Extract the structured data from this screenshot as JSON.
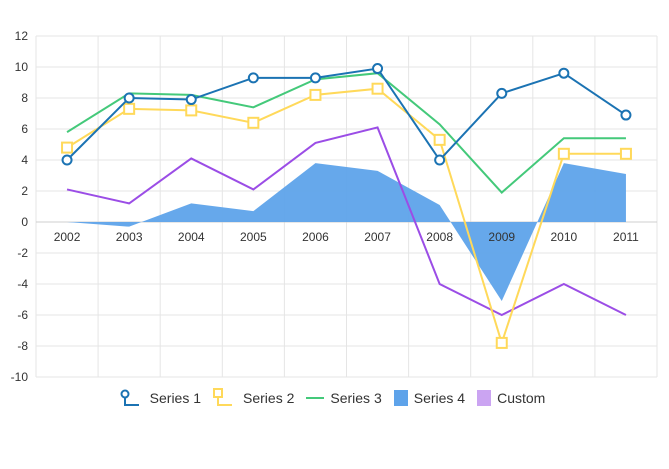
{
  "chart_data": {
    "type": "line",
    "categories": [
      "2002",
      "2003",
      "2004",
      "2005",
      "2006",
      "2007",
      "2008",
      "2009",
      "2010",
      "2011"
    ],
    "ylim": [
      -10,
      12
    ],
    "yticks": [
      "12",
      "10",
      "8",
      "6",
      "4",
      "2",
      "0",
      "-2",
      "-4",
      "-6",
      "-8",
      "-10"
    ],
    "grid": true,
    "legend_position": "bottom",
    "series": [
      {
        "name": "Series 1",
        "type": "line",
        "marker": "circle",
        "color": "#1b73b3",
        "values": [
          4,
          8,
          7.9,
          9.3,
          9.3,
          9.9,
          4,
          8.3,
          9.6,
          6.9
        ]
      },
      {
        "name": "Series 2",
        "type": "line",
        "marker": "square",
        "color": "#ffd95a",
        "values": [
          4.8,
          7.3,
          7.2,
          6.4,
          8.2,
          8.6,
          5.3,
          -7.8,
          4.4,
          4.4
        ]
      },
      {
        "name": "Series 3",
        "type": "line",
        "marker": "none",
        "color": "#44c97a",
        "values": [
          5.8,
          8.3,
          8.2,
          7.4,
          9.2,
          9.6,
          6.3,
          1.9,
          5.4,
          5.4
        ]
      },
      {
        "name": "Series 4",
        "type": "area",
        "marker": "none",
        "color": "#5ea3ea",
        "values": [
          0,
          -0.3,
          1.2,
          0.7,
          3.8,
          3.3,
          1.1,
          -5.1,
          3.8,
          3.1
        ]
      },
      {
        "name": "Custom",
        "type": "line",
        "marker": "none",
        "color": "#9b4de6",
        "legend_color": "#cba4f2",
        "values": [
          2.1,
          1.2,
          4.1,
          2.1,
          5.1,
          6.1,
          -4,
          -6,
          -4,
          -6
        ]
      }
    ]
  }
}
